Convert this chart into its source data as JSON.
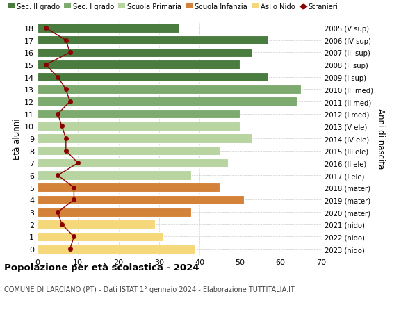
{
  "ages": [
    18,
    17,
    16,
    15,
    14,
    13,
    12,
    11,
    10,
    9,
    8,
    7,
    6,
    5,
    4,
    3,
    2,
    1,
    0
  ],
  "bar_values": [
    35,
    57,
    53,
    50,
    57,
    65,
    64,
    50,
    50,
    53,
    45,
    47,
    38,
    45,
    51,
    38,
    29,
    31,
    39
  ],
  "stranieri": [
    2,
    7,
    8,
    2,
    5,
    7,
    8,
    5,
    6,
    7,
    7,
    10,
    5,
    9,
    9,
    5,
    6,
    9,
    8
  ],
  "right_labels": [
    "2005 (V sup)",
    "2006 (IV sup)",
    "2007 (III sup)",
    "2008 (II sup)",
    "2009 (I sup)",
    "2010 (III med)",
    "2011 (II med)",
    "2012 (I med)",
    "2013 (V ele)",
    "2014 (IV ele)",
    "2015 (III ele)",
    "2016 (II ele)",
    "2017 (I ele)",
    "2018 (mater)",
    "2019 (mater)",
    "2020 (mater)",
    "2021 (nido)",
    "2022 (nido)",
    "2023 (nido)"
  ],
  "bar_colors": [
    "#4a7c3f",
    "#4a7c3f",
    "#4a7c3f",
    "#4a7c3f",
    "#4a7c3f",
    "#7daa6e",
    "#7daa6e",
    "#7daa6e",
    "#b8d4a0",
    "#b8d4a0",
    "#b8d4a0",
    "#b8d4a0",
    "#b8d4a0",
    "#d4813a",
    "#d4813a",
    "#d4813a",
    "#f5d87a",
    "#f5d87a",
    "#f5d87a"
  ],
  "legend_labels": [
    "Sec. II grado",
    "Sec. I grado",
    "Scuola Primaria",
    "Scuola Infanzia",
    "Asilo Nido",
    "Stranieri"
  ],
  "legend_colors": [
    "#4a7c3f",
    "#7daa6e",
    "#b8d4a0",
    "#d4813a",
    "#f5d87a",
    "#c0392b"
  ],
  "title_bold": "Popolazione per età scolastica - 2024",
  "subtitle": "COMUNE DI LARCIANO (PT) - Dati ISTAT 1° gennaio 2024 - Elaborazione TUTTITALIA.IT",
  "ylabel_left": "Età alunni",
  "ylabel_right": "Anni di nascita",
  "xlim": [
    0,
    70
  ],
  "xticks": [
    0,
    10,
    20,
    30,
    40,
    50,
    60,
    70
  ],
  "stranieri_color": "#8b0000",
  "background_color": "#ffffff",
  "grid_color": "#cccccc"
}
